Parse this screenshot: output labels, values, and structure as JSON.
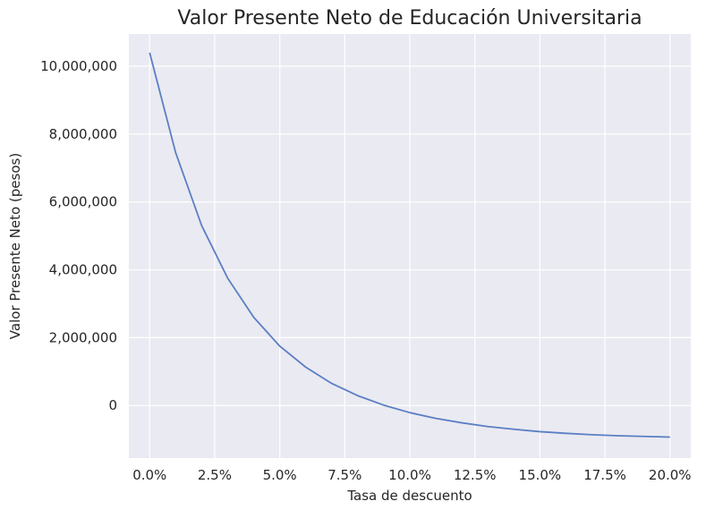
{
  "chart_data": {
    "type": "line",
    "title": "Valor Presente Neto de Educación Universitaria",
    "xlabel": "Tasa de descuento",
    "ylabel": "Valor Presente Neto (pesos)",
    "x_unit": "percent",
    "xlim": [
      -0.8,
      20.8
    ],
    "ylim": [
      -1550000,
      10950000
    ],
    "x_ticks": [
      0,
      2.5,
      5,
      7.5,
      10,
      12.5,
      15,
      17.5,
      20
    ],
    "x_tick_labels": [
      "0.0%",
      "2.5%",
      "5.0%",
      "7.5%",
      "10.0%",
      "12.5%",
      "15.0%",
      "17.5%",
      "20.0%"
    ],
    "y_ticks": [
      0,
      2000000,
      4000000,
      6000000,
      8000000,
      10000000
    ],
    "y_tick_labels": [
      "0",
      "2,000,000",
      "4,000,000",
      "6,000,000",
      "8,000,000",
      "10,000,000"
    ],
    "grid": true,
    "background": "#eaeaf2",
    "grid_color": "#ffffff",
    "series": [
      {
        "color": "#5b7fc4",
        "x": [
          0,
          1,
          2,
          3,
          4,
          5,
          6,
          7,
          8,
          9,
          10,
          11,
          12,
          13,
          14,
          15,
          16,
          17,
          18,
          19,
          20
        ],
        "y": [
          10400000,
          7450000,
          5300000,
          3750000,
          2600000,
          1750000,
          1130000,
          650000,
          290000,
          10000,
          -210000,
          -380000,
          -510000,
          -620000,
          -700000,
          -770000,
          -820000,
          -860000,
          -890000,
          -910000,
          -930000
        ]
      }
    ]
  }
}
